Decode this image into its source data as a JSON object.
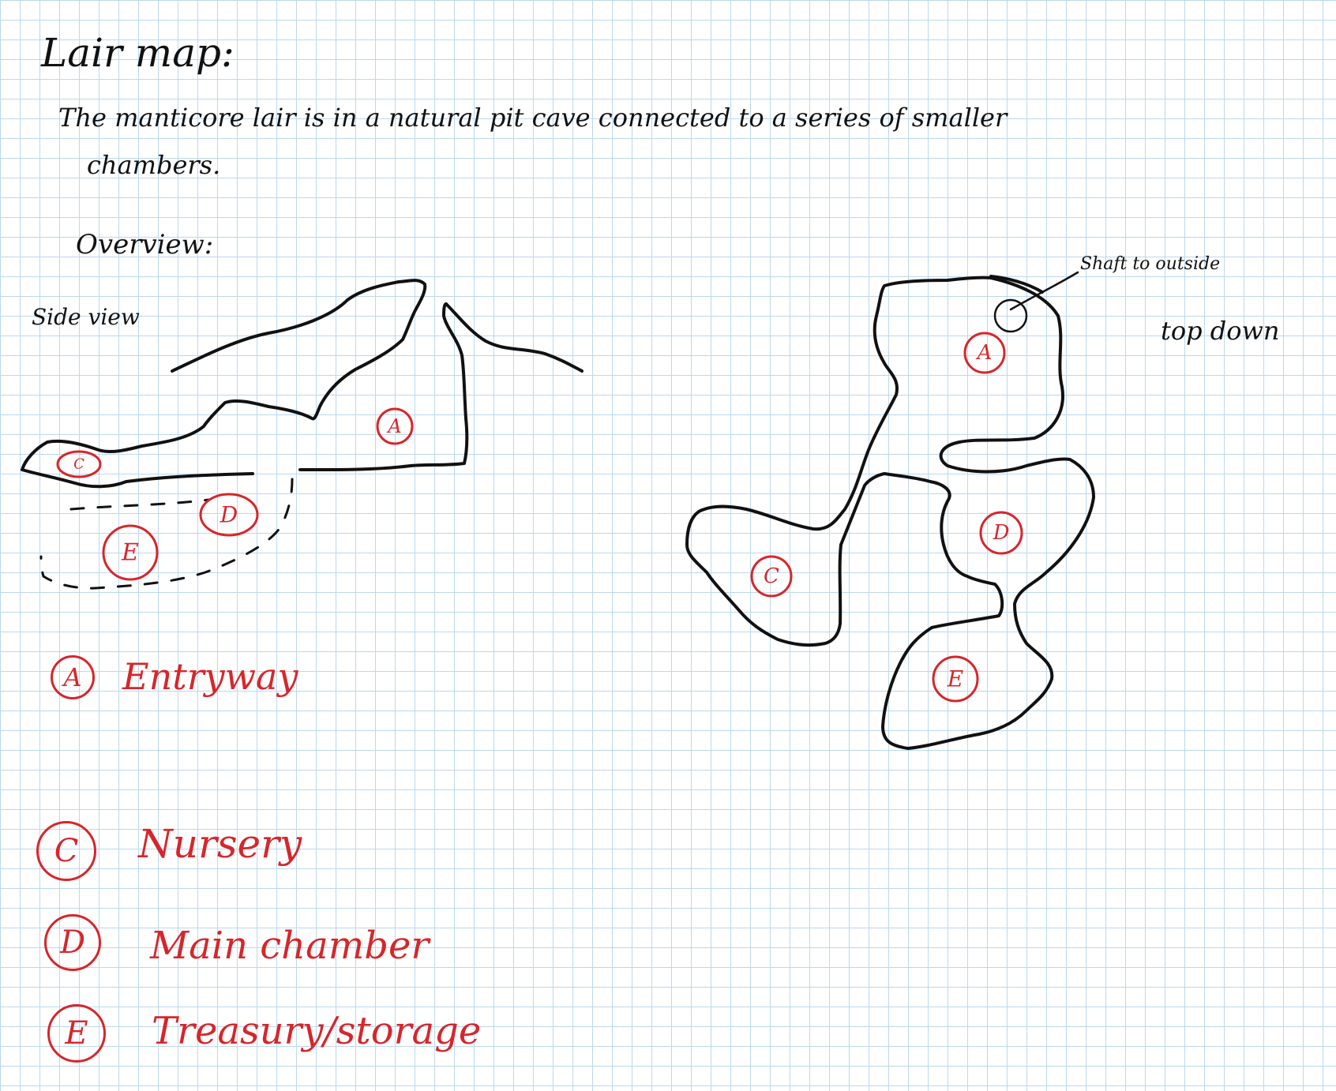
{
  "title": "Lair map:",
  "description_line1": "The manticore lair is in a natural pit cave connected to a series of smaller",
  "description_line2": "chambers.",
  "overview_label": "Overview:",
  "side_view_label": "Side view",
  "top_down_label": "top down",
  "shaft_label": "Shaft to outside",
  "map_markers": {
    "side": {
      "a": "A",
      "c": "C",
      "d": "D",
      "e": "E"
    },
    "top": {
      "a": "A",
      "c": "C",
      "d": "D",
      "e": "E"
    }
  },
  "legend": [
    {
      "letter": "A",
      "label": "Entryway"
    },
    {
      "letter": "C",
      "label": "Nursery"
    },
    {
      "letter": "D",
      "label": "Main chamber"
    },
    {
      "letter": "E",
      "label": "Treasury/storage"
    }
  ],
  "colors": {
    "ink": "#111111",
    "red_ink": "#d6262b",
    "grid": "#bcd8ee"
  }
}
